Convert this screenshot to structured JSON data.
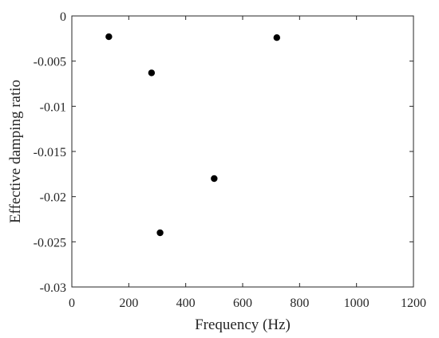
{
  "chart_data": {
    "type": "scatter",
    "xlabel": "Frequency (Hz)",
    "ylabel": "Effective damping ratio",
    "xlim": [
      0,
      1200
    ],
    "ylim": [
      -0.03,
      0
    ],
    "xticks": [
      0,
      200,
      400,
      600,
      800,
      1000,
      1200
    ],
    "yticks": [
      0,
      -0.005,
      -0.01,
      -0.015,
      -0.02,
      -0.025,
      -0.03
    ],
    "xtick_labels": [
      "0",
      "200",
      "400",
      "600",
      "800",
      "1000",
      "1200"
    ],
    "ytick_labels": [
      "0",
      "-0.005",
      "-0.01",
      "-0.015",
      "-0.02",
      "-0.025",
      "-0.03"
    ],
    "grid": false,
    "series": [
      {
        "color": "#000000",
        "marker": "filled-circle",
        "points": [
          {
            "x": 130,
            "y": -0.0023
          },
          {
            "x": 280,
            "y": -0.0063
          },
          {
            "x": 310,
            "y": -0.024
          },
          {
            "x": 500,
            "y": -0.018
          },
          {
            "x": 720,
            "y": -0.0024
          }
        ]
      }
    ]
  }
}
